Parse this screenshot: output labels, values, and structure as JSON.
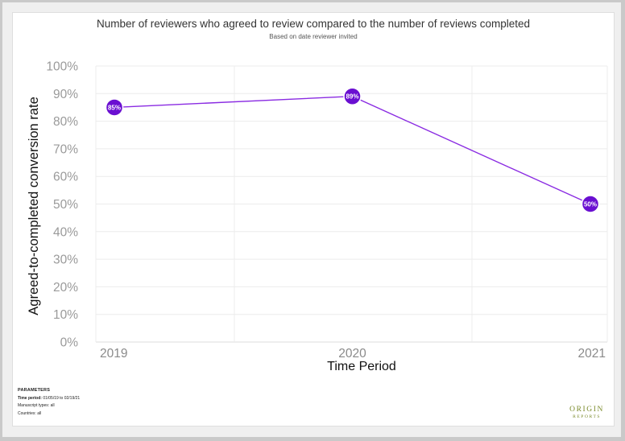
{
  "chart_data": {
    "type": "line",
    "title": "Number of reviewers who agreed to review compared to the number of reviews completed",
    "subtitle": "Based on date reviewer invited",
    "xlabel": "Time Period",
    "ylabel": "Agreed-to-completed conversion rate",
    "categories": [
      "2019",
      "2020",
      "2021"
    ],
    "values": [
      85,
      89,
      50
    ],
    "data_labels": [
      "85%",
      "89%",
      "50%"
    ],
    "ylim": [
      0,
      100
    ],
    "yticks": [
      0,
      10,
      20,
      30,
      40,
      50,
      60,
      70,
      80,
      90,
      100
    ],
    "ytick_suffix": "%",
    "grid": true,
    "legend": "none",
    "color": "#8a2be2",
    "marker_color": "#6a0fd1"
  },
  "parameters": {
    "heading": "PARAMETERS",
    "time_period_label": "Time period:",
    "time_period_value": "01/05/19 to 02/19/21",
    "manuscript_types_label": "Manuscript types:",
    "manuscript_types_value": "all",
    "countries_label": "Countries:",
    "countries_value": "all"
  },
  "logo": {
    "line1": "ORIGIN",
    "line2": "REPORTS"
  }
}
